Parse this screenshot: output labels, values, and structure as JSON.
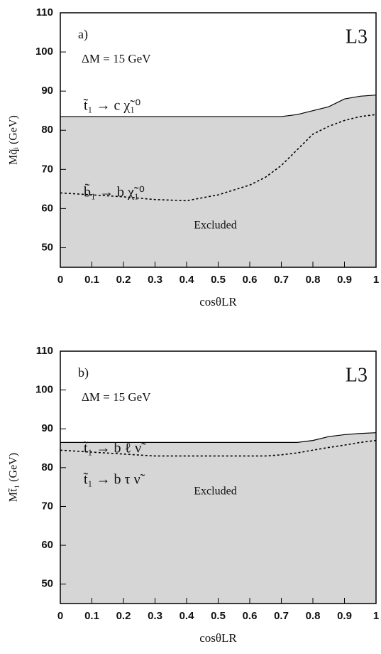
{
  "chart_data": [
    {
      "type": "area",
      "panel_label": "a)",
      "experiment": "L3",
      "annotation": "ΔM = 15 GeV",
      "region_label": "Excluded",
      "x_label": "cosθLR",
      "y_label": "Mq̃ᵢ (GeV)",
      "x": [
        0,
        0.1,
        0.2,
        0.3,
        0.4,
        0.5,
        0.6,
        0.65,
        0.7,
        0.75,
        0.8,
        0.85,
        0.9,
        0.95,
        1
      ],
      "series": [
        {
          "name": "t̃₁ → c χ̃₁⁰",
          "color": "#000000",
          "fill": "#d6d6d6",
          "style": "solid",
          "values": [
            83.5,
            83.5,
            83.5,
            83.5,
            83.5,
            83.5,
            83.5,
            83.5,
            83.5,
            84,
            85,
            86,
            88,
            88.7,
            89
          ]
        },
        {
          "name": "b̃₁ → b χ̃₁⁰",
          "color": "#000000",
          "style": "dashed",
          "values": [
            64,
            63.5,
            63,
            62.3,
            62,
            63.5,
            66,
            68,
            71,
            75,
            79,
            81,
            82.5,
            83.5,
            84
          ]
        }
      ],
      "xlim": [
        0,
        1
      ],
      "ylim": [
        45,
        110
      ],
      "xticks": [
        0,
        0.1,
        0.2,
        0.3,
        0.4,
        0.5,
        0.6,
        0.7,
        0.8,
        0.9,
        1
      ],
      "yticks": [
        50,
        60,
        70,
        80,
        90,
        100,
        110
      ]
    },
    {
      "type": "area",
      "panel_label": "b)",
      "experiment": "L3",
      "annotation": "ΔM = 15 GeV",
      "region_label": "Excluded",
      "x_label": "cosθLR",
      "y_label": "Mt̃₁ (GeV)",
      "x": [
        0,
        0.1,
        0.2,
        0.3,
        0.4,
        0.5,
        0.6,
        0.65,
        0.7,
        0.75,
        0.8,
        0.85,
        0.9,
        0.95,
        1
      ],
      "series": [
        {
          "name": "t̃₁ → b ℓ ν̃",
          "color": "#000000",
          "fill": "#d6d6d6",
          "style": "solid",
          "values": [
            86.5,
            86.5,
            86.5,
            86.5,
            86.5,
            86.5,
            86.5,
            86.5,
            86.5,
            86.5,
            87,
            88,
            88.5,
            88.8,
            89
          ]
        },
        {
          "name": "t̃₁ → b τ ν̃",
          "color": "#000000",
          "style": "dashed",
          "values": [
            84.5,
            84,
            83.5,
            83,
            83,
            83,
            83,
            83,
            83.3,
            83.8,
            84.5,
            85.2,
            85.8,
            86.5,
            87
          ]
        }
      ],
      "xlim": [
        0,
        1
      ],
      "ylim": [
        45,
        110
      ],
      "xticks": [
        0,
        0.1,
        0.2,
        0.3,
        0.4,
        0.5,
        0.6,
        0.7,
        0.8,
        0.9,
        1
      ],
      "yticks": [
        50,
        60,
        70,
        80,
        90,
        100,
        110
      ]
    }
  ]
}
